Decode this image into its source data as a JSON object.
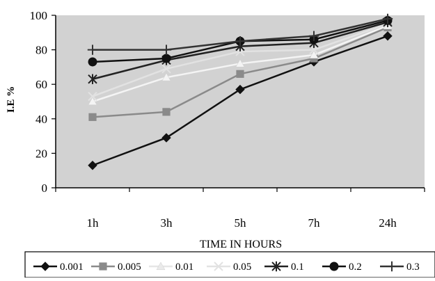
{
  "chart_data": {
    "type": "line",
    "title": "",
    "xlabel": "TIME IN HOURS",
    "ylabel": "I.E %",
    "categories": [
      "1h",
      "3h",
      "5h",
      "7h",
      "24h"
    ],
    "ylim": [
      0,
      100
    ],
    "yticks": [
      0,
      20,
      40,
      60,
      80,
      100
    ],
    "grid": false,
    "legend_position": "bottom",
    "background": "#d2d2d2",
    "series": [
      {
        "name": "0.001",
        "values": [
          13,
          29,
          57,
          73,
          88
        ],
        "color": "#111111",
        "marker": "diamond"
      },
      {
        "name": "0.005",
        "values": [
          41,
          44,
          66,
          75,
          93
        ],
        "color": "#8a8a8a",
        "marker": "square"
      },
      {
        "name": "0.01",
        "values": [
          50,
          64,
          72,
          77,
          94
        ],
        "color": "#f4f4f4",
        "marker": "triangle"
      },
      {
        "name": "0.05",
        "values": [
          53,
          69,
          79,
          80,
          95
        ],
        "color": "#e2e2e2",
        "marker": "x"
      },
      {
        "name": "0.1",
        "values": [
          63,
          74,
          82,
          84,
          96
        ],
        "color": "#222222",
        "marker": "star"
      },
      {
        "name": "0.2",
        "values": [
          73,
          75,
          85,
          86,
          97
        ],
        "color": "#111111",
        "marker": "circle"
      },
      {
        "name": "0.3",
        "values": [
          80,
          80,
          85,
          88,
          98
        ],
        "color": "#333333",
        "marker": "plus"
      }
    ]
  }
}
